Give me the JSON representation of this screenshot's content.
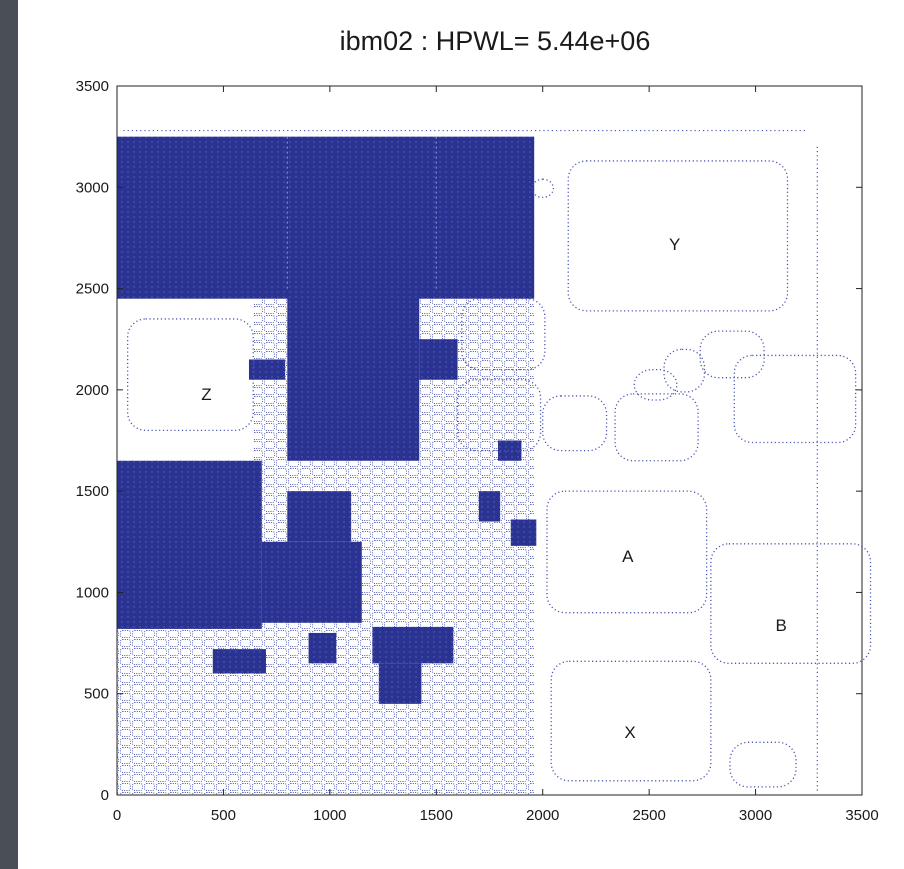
{
  "chart_data": {
    "type": "scatter",
    "title": "ibm02 : HPWL= 5.44e+06",
    "xlabel": "",
    "ylabel": "",
    "xlim": [
      0,
      3500
    ],
    "ylim": [
      0,
      3500
    ],
    "x_ticks": [
      0,
      500,
      1000,
      1500,
      2000,
      2500,
      3000,
      3500
    ],
    "y_ticks": [
      0,
      500,
      1000,
      1500,
      2000,
      2500,
      3000,
      3500
    ],
    "grid": false,
    "colors": {
      "cells": "#2a3392",
      "outline": "#4a55b0"
    },
    "dense_regions": [
      {
        "x": [
          0,
          1960
        ],
        "y": [
          2450,
          3250
        ]
      },
      {
        "x": [
          800,
          1420
        ],
        "y": [
          1650,
          2480
        ]
      },
      {
        "x": [
          1420,
          1600
        ],
        "y": [
          2050,
          2250
        ]
      },
      {
        "x": [
          620,
          790
        ],
        "y": [
          2050,
          2150
        ]
      },
      {
        "x": [
          0,
          680
        ],
        "y": [
          820,
          1650
        ]
      },
      {
        "x": [
          680,
          1150
        ],
        "y": [
          850,
          1250
        ]
      },
      {
        "x": [
          800,
          1100
        ],
        "y": [
          1250,
          1500
        ]
      },
      {
        "x": [
          1200,
          1580
        ],
        "y": [
          650,
          830
        ]
      },
      {
        "x": [
          1230,
          1430
        ],
        "y": [
          450,
          650
        ]
      },
      {
        "x": [
          900,
          1030
        ],
        "y": [
          650,
          800
        ]
      },
      {
        "x": [
          450,
          700
        ],
        "y": [
          600,
          720
        ]
      },
      {
        "x": [
          1850,
          1970
        ],
        "y": [
          1230,
          1360
        ]
      },
      {
        "x": [
          1700,
          1800
        ],
        "y": [
          1350,
          1500
        ]
      },
      {
        "x": [
          1790,
          1900
        ],
        "y": [
          1650,
          1750
        ]
      }
    ],
    "macro_blocks": [
      {
        "x": [
          2120,
          3150
        ],
        "y": [
          2390,
          3130
        ]
      },
      {
        "x": [
          2020,
          2770
        ],
        "y": [
          900,
          1500
        ]
      },
      {
        "x": [
          2790,
          3540
        ],
        "y": [
          650,
          1240
        ]
      },
      {
        "x": [
          2040,
          2790
        ],
        "y": [
          70,
          660
        ]
      },
      {
        "x": [
          2880,
          3190
        ],
        "y": [
          40,
          260
        ]
      },
      {
        "x": [
          1620,
          2010
        ],
        "y": [
          2100,
          2450
        ]
      },
      {
        "x": [
          1600,
          1990
        ],
        "y": [
          1700,
          2050
        ]
      },
      {
        "x": [
          2000,
          2300
        ],
        "y": [
          1700,
          1970
        ]
      },
      {
        "x": [
          2340,
          2730
        ],
        "y": [
          1650,
          1980
        ]
      },
      {
        "x": [
          2900,
          3470
        ],
        "y": [
          1740,
          2170
        ]
      },
      {
        "x": [
          2740,
          3040
        ],
        "y": [
          2060,
          2290
        ]
      },
      {
        "x": [
          50,
          640
        ],
        "y": [
          1800,
          2350
        ]
      },
      {
        "x": [
          1950,
          2050
        ],
        "y": [
          2950,
          3040
        ]
      },
      {
        "x": [
          2430,
          2630
        ],
        "y": [
          1950,
          2100
        ]
      },
      {
        "x": [
          2570,
          2760
        ],
        "y": [
          1990,
          2200
        ]
      }
    ],
    "annotations": [
      {
        "text": "Y",
        "x": 2620,
        "y": 2720
      },
      {
        "text": "Z",
        "x": 420,
        "y": 1980
      },
      {
        "text": "A",
        "x": 2400,
        "y": 1180
      },
      {
        "text": "B",
        "x": 3120,
        "y": 840
      },
      {
        "text": "X",
        "x": 2410,
        "y": 310
      }
    ]
  }
}
